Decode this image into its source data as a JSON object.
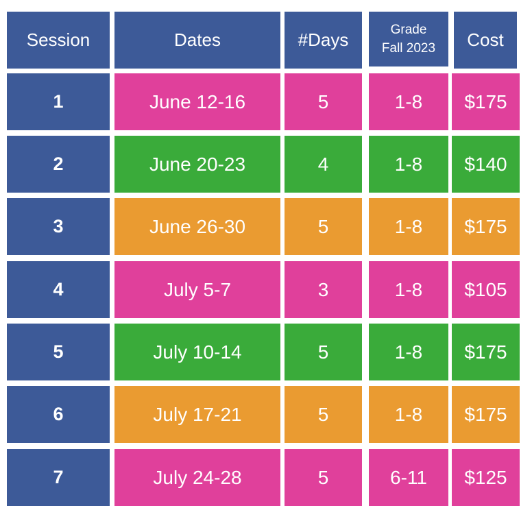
{
  "colors": {
    "blue": "#3d5a98",
    "pink": "#e0409b",
    "green": "#3aab3a",
    "orange": "#ea9b31"
  },
  "header": {
    "session": "Session",
    "dates": "Dates",
    "days": "#Days",
    "grade_line1": "Grade",
    "grade_line2": "Fall 2023",
    "cost": "Cost"
  },
  "rows": [
    {
      "session": "1",
      "dates": "June 12-16",
      "days": "5",
      "grade": "1-8",
      "cost": "$175",
      "color": "pink"
    },
    {
      "session": "2",
      "dates": "June 20-23",
      "days": "4",
      "grade": "1-8",
      "cost": "$140",
      "color": "green"
    },
    {
      "session": "3",
      "dates": "June 26-30",
      "days": "5",
      "grade": "1-8",
      "cost": "$175",
      "color": "orange"
    },
    {
      "session": "4",
      "dates": "July 5-7",
      "days": "3",
      "grade": "1-8",
      "cost": "$105",
      "color": "pink"
    },
    {
      "session": "5",
      "dates": "July 10-14",
      "days": "5",
      "grade": "1-8",
      "cost": "$175",
      "color": "green"
    },
    {
      "session": "6",
      "dates": "July 17-21",
      "days": "5",
      "grade": "1-8",
      "cost": "$175",
      "color": "orange"
    },
    {
      "session": "7",
      "dates": "July 24-28",
      "days": "5",
      "grade": "6-11",
      "cost": "$125",
      "color": "pink"
    }
  ]
}
